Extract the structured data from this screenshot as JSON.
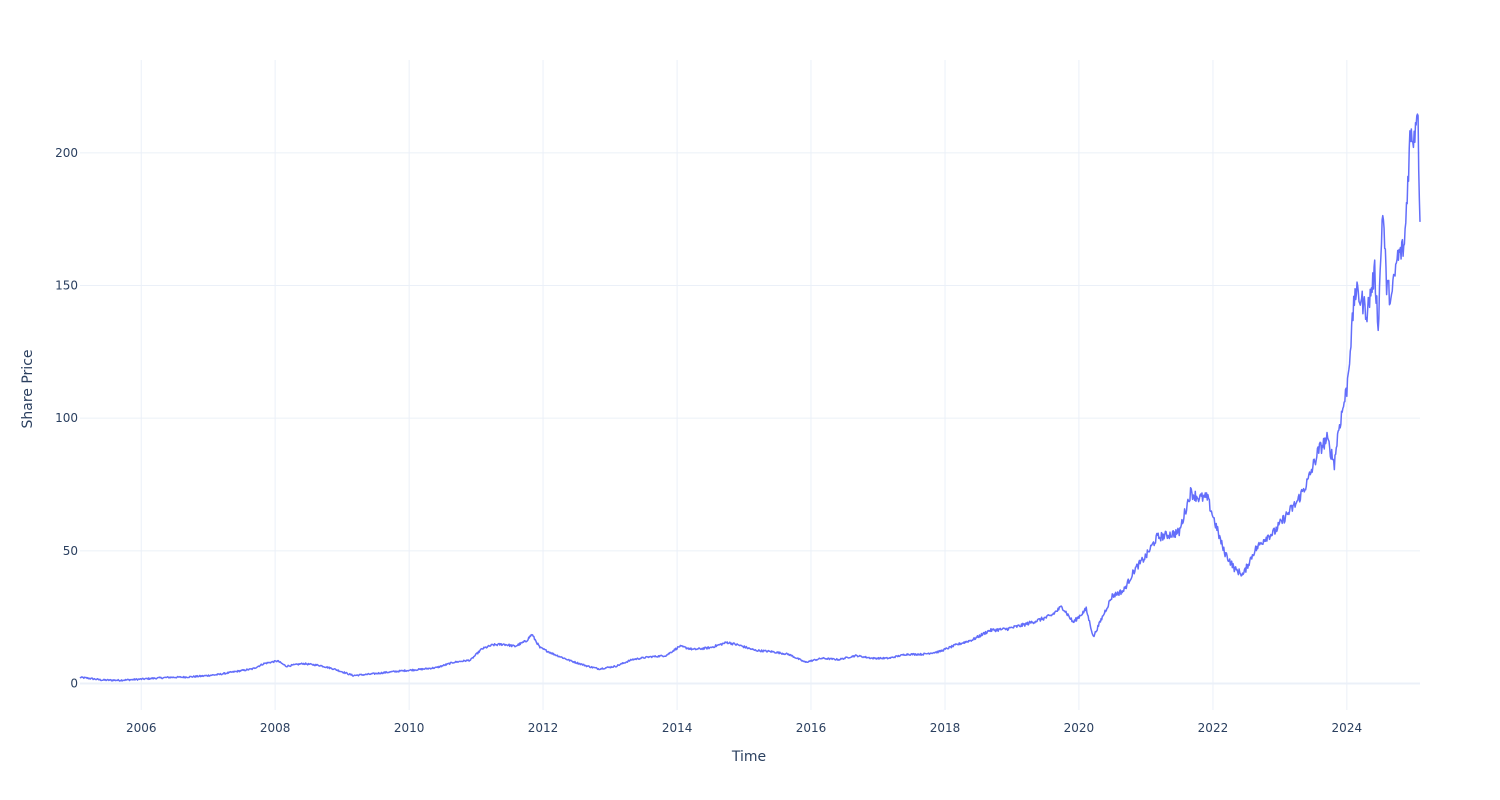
{
  "chart_data": {
    "type": "line",
    "xlabel": "Time",
    "ylabel": "Share Price",
    "xlim": [
      "2005-02-01",
      "2025-02-03"
    ],
    "ylim": [
      -10,
      235
    ],
    "x_ticks": [
      "2006",
      "2008",
      "2010",
      "2012",
      "2014",
      "2016",
      "2018",
      "2020",
      "2022",
      "2024"
    ],
    "y_ticks": [
      0,
      50,
      100,
      150,
      200
    ],
    "grid": true,
    "legend": "none",
    "colors": {
      "line": "#636efa",
      "grid": "#ebf0f8",
      "text": "#2a3f5f"
    },
    "series": [
      {
        "x": [
          "2005-02-01",
          "2005-03-15",
          "2005-06-01",
          "2005-09-01",
          "2005-12-01",
          "2006-03-01",
          "2006-06-01",
          "2006-09-01",
          "2006-12-01",
          "2007-03-01",
          "2007-06-01",
          "2007-09-01",
          "2007-11-01",
          "2008-01-15",
          "2008-03-01",
          "2008-06-01",
          "2008-09-01",
          "2008-11-15",
          "2009-03-01",
          "2009-06-01",
          "2009-09-01",
          "2009-12-01",
          "2010-03-01",
          "2010-06-01",
          "2010-09-01",
          "2010-12-01",
          "2011-02-01",
          "2011-04-01",
          "2011-06-01",
          "2011-08-01",
          "2011-10-01",
          "2011-11-01",
          "2011-12-15",
          "2012-03-01",
          "2012-06-01",
          "2012-09-01",
          "2012-11-01",
          "2013-02-01",
          "2013-05-01",
          "2013-08-01",
          "2013-11-01",
          "2014-01-15",
          "2014-04-01",
          "2014-07-01",
          "2014-10-01",
          "2014-12-01",
          "2015-03-01",
          "2015-06-01",
          "2015-09-01",
          "2015-12-01",
          "2016-03-01",
          "2016-06-01",
          "2016-09-01",
          "2016-12-01",
          "2017-03-01",
          "2017-06-01",
          "2017-09-01",
          "2017-12-01",
          "2018-03-01",
          "2018-06-01",
          "2018-09-01",
          "2018-12-01",
          "2019-03-01",
          "2019-06-01",
          "2019-08-01",
          "2019-10-01",
          "2019-12-01",
          "2020-02-10",
          "2020-03-20",
          "2020-05-01",
          "2020-07-01",
          "2020-09-01",
          "2020-11-01",
          "2021-01-01",
          "2021-03-01",
          "2021-05-01",
          "2021-07-01",
          "2021-09-01",
          "2021-10-15",
          "2021-12-01",
          "2022-01-15",
          "2022-03-01",
          "2022-05-01",
          "2022-06-15",
          "2022-08-15",
          "2022-10-15",
          "2022-12-01",
          "2023-02-01",
          "2023-04-01",
          "2023-06-01",
          "2023-08-01",
          "2023-09-15",
          "2023-10-25",
          "2023-11-15",
          "2024-01-01",
          "2024-02-15",
          "2024-03-25",
          "2024-04-20",
          "2024-06-01",
          "2024-06-20",
          "2024-07-15",
          "2024-08-05",
          "2024-09-01",
          "2024-10-01",
          "2024-11-10",
          "2024-12-10",
          "2025-01-06",
          "2025-01-20",
          "2025-01-27",
          "2025-02-03"
        ],
        "y": [
          2.3,
          2.0,
          1.3,
          1.2,
          1.5,
          1.9,
          2.3,
          2.4,
          2.8,
          3.4,
          4.5,
          5.5,
          7.5,
          8.5,
          6.5,
          7.5,
          6.8,
          5.5,
          3.0,
          3.5,
          4.2,
          4.8,
          5.3,
          6.0,
          8.0,
          8.8,
          13.0,
          14.5,
          14.8,
          14.0,
          16.0,
          18.5,
          13.5,
          11.0,
          8.5,
          6.5,
          5.5,
          6.5,
          9.0,
          10.0,
          10.5,
          14.0,
          12.8,
          13.5,
          15.5,
          14.5,
          12.5,
          12.0,
          11.0,
          8.0,
          9.5,
          9.0,
          10.5,
          9.5,
          9.5,
          11.0,
          11.0,
          12.0,
          14.5,
          16.5,
          20.0,
          20.5,
          22.0,
          24.0,
          25.5,
          29.0,
          23.0,
          28.0,
          17.5,
          24.0,
          33.0,
          35.0,
          43.0,
          48.0,
          55.0,
          56.0,
          57.0,
          72.0,
          70.0,
          70.0,
          60.0,
          50.0,
          43.0,
          41.0,
          50.0,
          55.0,
          57.0,
          63.0,
          68.0,
          76.0,
          88.0,
          92.0,
          83.0,
          95.0,
          111.0,
          148.0,
          144.0,
          140.0,
          155.0,
          135.0,
          180.0,
          150.0,
          145.0,
          160.0,
          165.0,
          205.0,
          208.0,
          220.0,
          198.0,
          174.0
        ]
      }
    ]
  }
}
